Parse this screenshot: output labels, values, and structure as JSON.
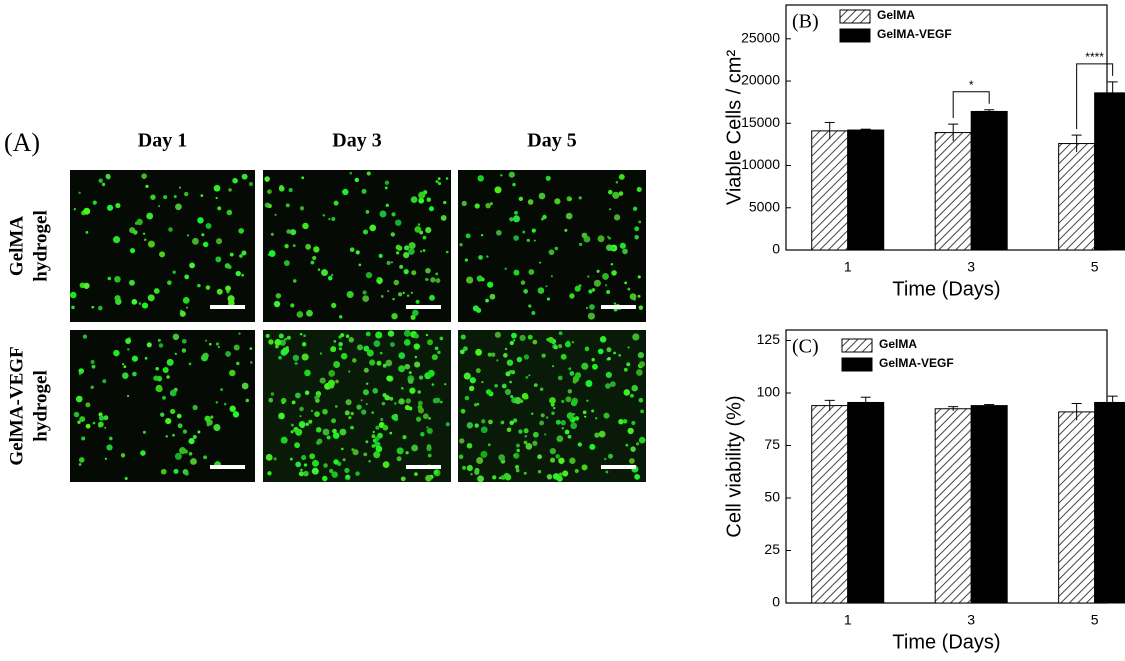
{
  "panel_a": {
    "label": "(A)",
    "columns": [
      "Day 1",
      "Day 3",
      "Day 5"
    ],
    "rows": [
      [
        "GelMA",
        "hydrogel"
      ],
      [
        "GelMA-VEGF",
        "hydrogel"
      ]
    ]
  },
  "chart_data": [
    {
      "type": "bar",
      "panel_label": "(B)",
      "x_label": "Time (Days)",
      "y_label": "Viable Cells / cm²",
      "x": [
        1,
        3,
        5
      ],
      "xlim": [
        0,
        5.2
      ],
      "xticks": [
        1,
        3,
        5
      ],
      "ylim": [
        0,
        29000
      ],
      "yticks": [
        0,
        5000,
        10000,
        15000,
        20000,
        25000
      ],
      "series": [
        {
          "name": "GelMA",
          "color": "#444444",
          "pattern": "hatch",
          "values": [
            14100,
            13900,
            12600
          ],
          "errors": [
            1000,
            1000,
            1000
          ]
        },
        {
          "name": "GelMA-VEGF",
          "color": "#000000",
          "pattern": "solid",
          "values": [
            14200,
            16400,
            18600
          ],
          "errors": [
            100,
            200,
            1300
          ]
        }
      ],
      "annotations": [
        {
          "x": 3,
          "text": "*"
        },
        {
          "x": 5,
          "text": "****"
        }
      ]
    },
    {
      "type": "bar",
      "panel_label": "(C)",
      "x_label": "Time (Days)",
      "y_label": "Cell viability (%)",
      "x": [
        1,
        3,
        5
      ],
      "xlim": [
        0,
        5.2
      ],
      "xticks": [
        1,
        3,
        5
      ],
      "ylim": [
        0,
        130
      ],
      "yticks": [
        0,
        25,
        50,
        75,
        100,
        125
      ],
      "series": [
        {
          "name": "GelMA",
          "color": "#444444",
          "pattern": "hatch",
          "values": [
            94,
            92.5,
            91
          ],
          "errors": [
            2.5,
            1,
            4
          ]
        },
        {
          "name": "GelMA-VEGF",
          "color": "#000000",
          "pattern": "solid",
          "values": [
            95.5,
            94,
            95.5
          ],
          "errors": [
            2.5,
            0.5,
            3
          ]
        }
      ],
      "annotations": []
    }
  ]
}
